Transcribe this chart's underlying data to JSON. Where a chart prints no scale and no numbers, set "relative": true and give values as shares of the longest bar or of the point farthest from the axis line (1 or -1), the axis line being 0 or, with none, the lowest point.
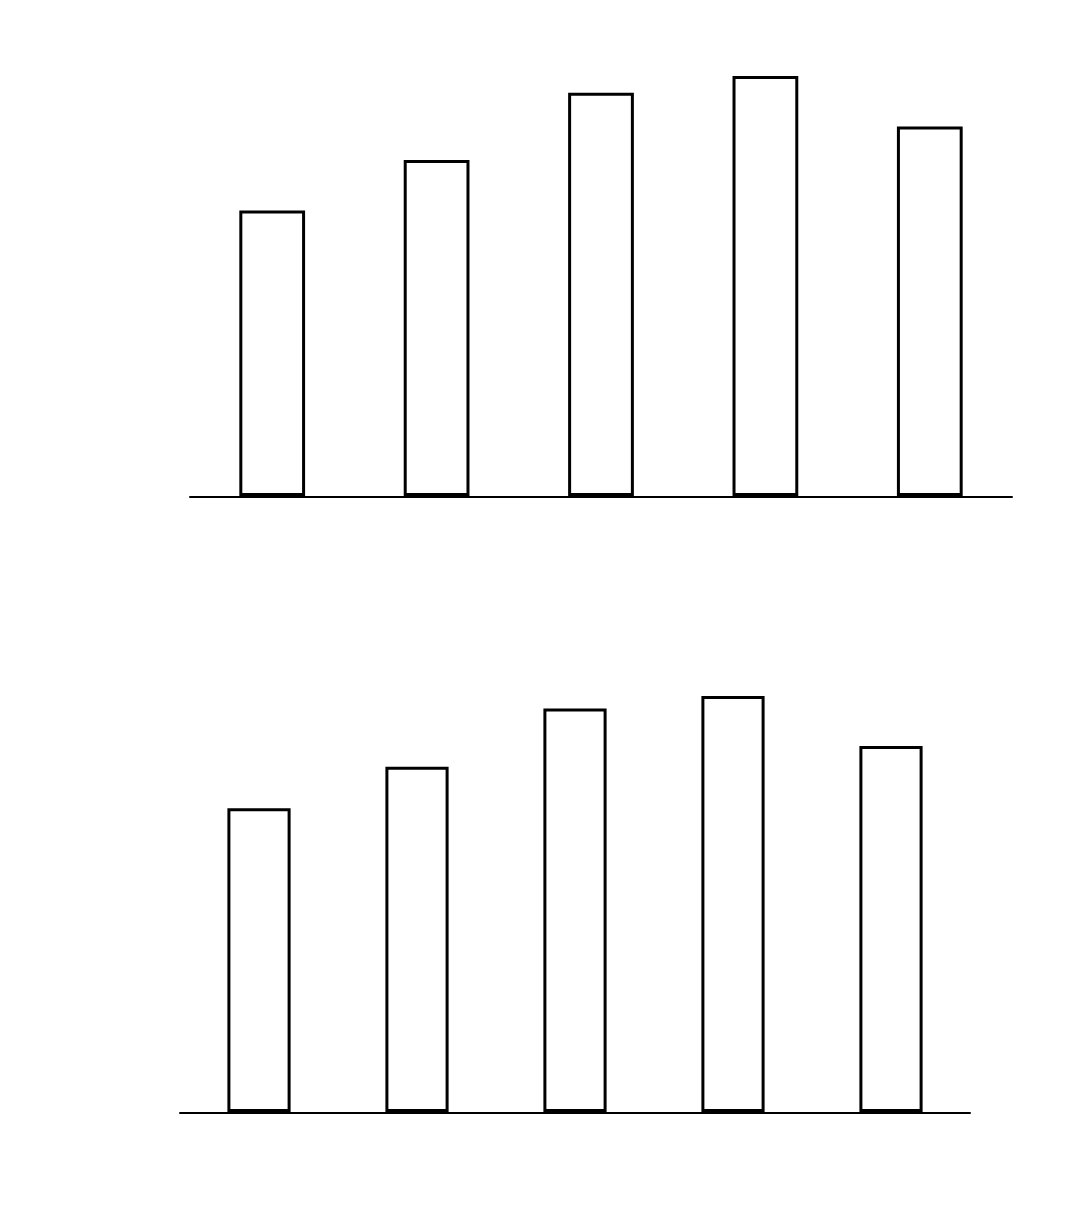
{
  "chart_data": [
    {
      "type": "bar",
      "relative": true,
      "categories": [
        null,
        null,
        null,
        null,
        null
      ],
      "values": [
        0.68,
        0.8,
        0.96,
        1,
        0.88
      ],
      "color": "#ffffff"
    },
    {
      "type": "bar",
      "relative": true,
      "categories": [
        null,
        null,
        null,
        null,
        null
      ],
      "values": [
        0.73,
        0.83,
        0.97,
        1,
        0.88
      ],
      "color": "#ffffff"
    }
  ]
}
